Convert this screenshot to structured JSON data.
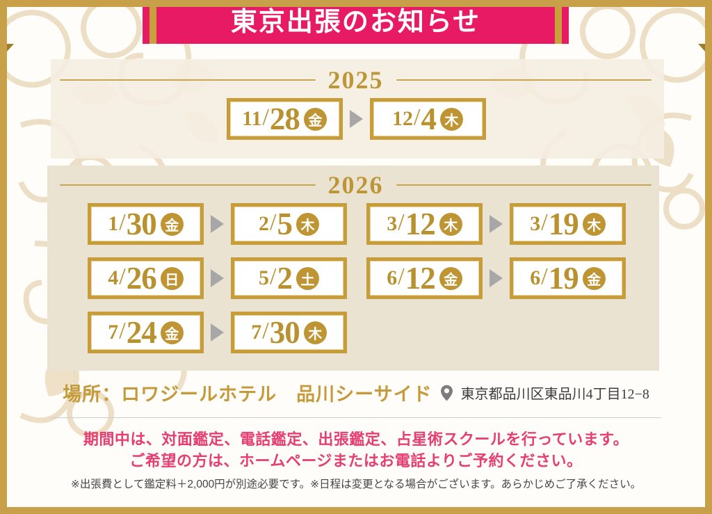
{
  "header": {
    "title": "東京出張のお知らせ"
  },
  "schedule": [
    {
      "year": "2025",
      "pairs": [
        {
          "from": {
            "month": "11",
            "day": "28",
            "dow": "金"
          },
          "to": {
            "month": "12",
            "day": "4",
            "dow": "木"
          }
        }
      ]
    },
    {
      "year": "2026",
      "pairs": [
        {
          "from": {
            "month": "1",
            "day": "30",
            "dow": "金"
          },
          "to": {
            "month": "2",
            "day": "5",
            "dow": "木"
          }
        },
        {
          "from": {
            "month": "3",
            "day": "12",
            "dow": "木"
          },
          "to": {
            "month": "3",
            "day": "19",
            "dow": "木"
          }
        },
        {
          "from": {
            "month": "4",
            "day": "26",
            "dow": "日"
          },
          "to": {
            "month": "5",
            "day": "2",
            "dow": "土"
          }
        },
        {
          "from": {
            "month": "6",
            "day": "12",
            "dow": "金"
          },
          "to": {
            "month": "6",
            "day": "19",
            "dow": "金"
          }
        },
        {
          "from": {
            "month": "7",
            "day": "24",
            "dow": "金"
          },
          "to": {
            "month": "7",
            "day": "30",
            "dow": "木"
          }
        }
      ]
    }
  ],
  "location": {
    "label": "場所：ロワジールホテル　品川シーサイド",
    "address": "東京都品川区東品川4丁目12−8",
    "pin_icon": "map-pin"
  },
  "notice": {
    "line1": "期間中は、対面鑑定、電話鑑定、出張鑑定、占星術スクールを行っています。",
    "line2": "ご希望の方は、ホームページまたはお電話よりご予約ください。"
  },
  "footnote": "※出張費として鑑定料＋2,000円が別途必要です。※日程は変更となる場合がございます。あらかじめご了承ください。",
  "icons": {
    "arrow": "right-arrow",
    "separator": "slash"
  },
  "colors": {
    "frame_gold": "#c8a04a",
    "ribbon_pink": "#e81a64",
    "ribbon_stripe_gold": "#c7a13c",
    "date_gold": "#b9912f",
    "box_border_gold": "#c79d3c",
    "badge_gold": "#bf9433",
    "year_gold": "#bd9737",
    "location_gold": "#c49a3a",
    "notice_pink": "#e73e72",
    "panel_cream": "#f5eee1",
    "panel_beige": "#ebe3d2",
    "footnote_gray": "#454545"
  }
}
